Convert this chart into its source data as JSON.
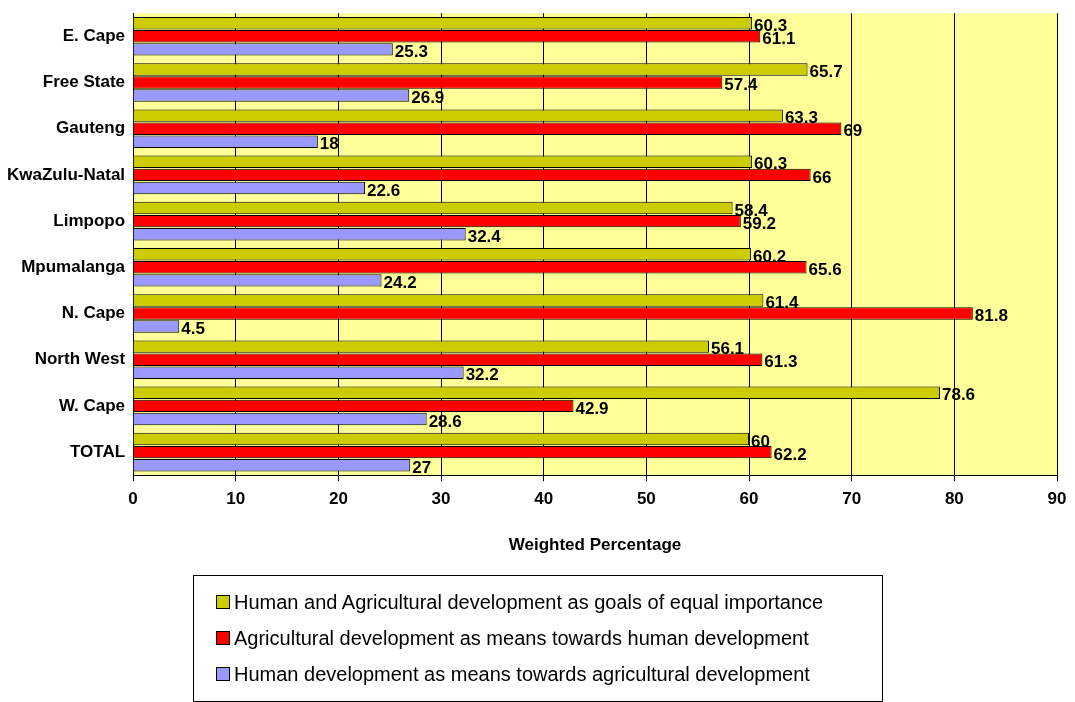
{
  "chart_data": {
    "type": "bar",
    "orientation": "horizontal",
    "xlabel": "Weighted Percentage",
    "categories": [
      "E. Cape",
      "Free State",
      "Gauteng",
      "KwaZulu-Natal",
      "Limpopo",
      "Mpumalanga",
      "N. Cape",
      "North West",
      "W. Cape",
      "TOTAL"
    ],
    "series": [
      {
        "name": "Human and Agricultural development as goals of equal importance",
        "color": "#cccc00",
        "values": [
          60.3,
          65.7,
          63.3,
          60.3,
          58.4,
          60.2,
          61.4,
          56.1,
          78.6,
          60
        ]
      },
      {
        "name": "Agricultural development as means towards human development",
        "color": "#ff0000",
        "values": [
          61.1,
          57.4,
          69,
          66,
          59.2,
          65.6,
          81.8,
          61.3,
          42.9,
          62.2
        ]
      },
      {
        "name": "Human development as means towards agricultural development",
        "color": "#9999ff",
        "values": [
          25.3,
          26.9,
          18,
          22.6,
          32.4,
          24.2,
          4.5,
          32.2,
          28.6,
          27
        ]
      }
    ],
    "xlim": [
      0,
      90
    ],
    "xticks": [
      0,
      10,
      20,
      30,
      40,
      50,
      60,
      70,
      80,
      90
    ],
    "grid": "x",
    "legend": "bottom",
    "data_labels": true
  }
}
